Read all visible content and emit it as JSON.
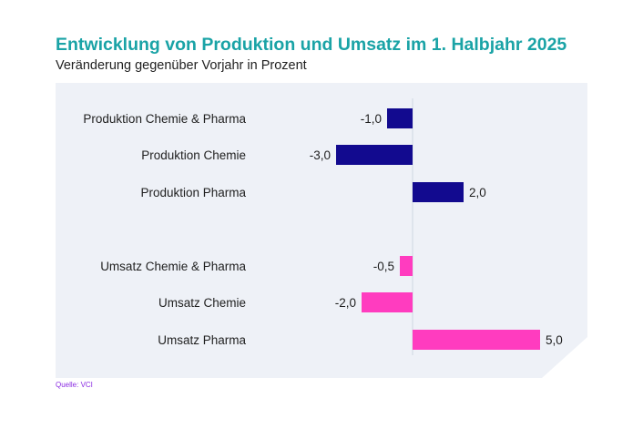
{
  "header": {
    "title": "Entwicklung von Produktion und Umsatz im 1. Halbjahr 2025",
    "subtitle": "Veränderung gegenüber Vorjahr in Prozent"
  },
  "footer": {
    "source": "Quelle: VCI"
  },
  "colors": {
    "title": "#1aa3a6",
    "production": "#120a8f",
    "sales": "#ff3cbf",
    "panel": "#eef1f7"
  },
  "chart_data": {
    "type": "bar",
    "orientation": "horizontal",
    "title": "Entwicklung von Produktion und Umsatz im 1. Halbjahr 2025",
    "subtitle": "Veränderung gegenüber Vorjahr in Prozent",
    "xlabel": "",
    "ylabel": "",
    "xlim": [
      -3,
      5
    ],
    "grid": false,
    "legend": "none",
    "bars": [
      {
        "category": "Produktion Chemie & Pharma",
        "value": -1.0,
        "label": "-1,0",
        "group": "production"
      },
      {
        "category": "Produktion Chemie",
        "value": -3.0,
        "label": "-3,0",
        "group": "production"
      },
      {
        "category": "Produktion Pharma",
        "value": 2.0,
        "label": "2,0",
        "group": "production"
      },
      {
        "category": "Umsatz Chemie & Pharma",
        "value": -0.5,
        "label": "-0,5",
        "group": "sales"
      },
      {
        "category": "Umsatz Chemie",
        "value": -2.0,
        "label": "-2,0",
        "group": "sales"
      },
      {
        "category": "Umsatz Pharma",
        "value": 5.0,
        "label": "5,0",
        "group": "sales"
      }
    ]
  }
}
